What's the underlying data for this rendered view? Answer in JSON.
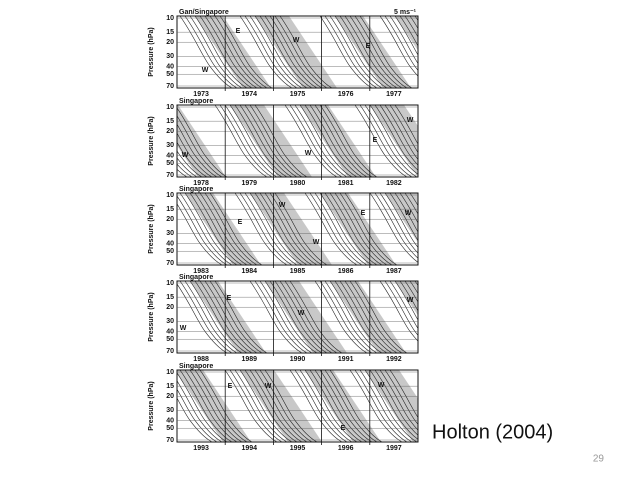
{
  "figure": {
    "scale_label": "5 ms⁻¹",
    "y_label": "Pressure (hPa)",
    "panels": [
      {
        "station": "Gan/Singapore",
        "y_ticks": [
          10,
          15,
          20,
          30,
          40,
          50,
          70
        ],
        "years": [
          "1973",
          "1974",
          "1975",
          "1976",
          "1977"
        ],
        "annotations": [
          "E",
          "W",
          "E",
          "W"
        ]
      },
      {
        "station": "Singapore",
        "y_ticks": [
          10,
          15,
          20,
          30,
          40,
          50,
          70
        ],
        "years": [
          "1978",
          "1979",
          "1980",
          "1981",
          "1982"
        ],
        "annotations": [
          "W",
          "E",
          "W",
          "W"
        ]
      },
      {
        "station": "Singapore",
        "y_ticks": [
          10,
          15,
          20,
          30,
          40,
          50,
          70
        ],
        "years": [
          "1983",
          "1984",
          "1985",
          "1986",
          "1987"
        ],
        "annotations": [
          "W",
          "E",
          "W",
          "E",
          "W"
        ]
      },
      {
        "station": "Singapore",
        "y_ticks": [
          10,
          15,
          20,
          30,
          40,
          50,
          70
        ],
        "years": [
          "1988",
          "1989",
          "1990",
          "1991",
          "1992"
        ],
        "annotations": [
          "E",
          "W",
          "W",
          "W"
        ]
      },
      {
        "station": "Singapore",
        "y_ticks": [
          10,
          15,
          20,
          30,
          40,
          50,
          70
        ],
        "years": [
          "1993",
          "1994",
          "1995",
          "1996",
          "1997"
        ],
        "annotations": [
          "E",
          "W",
          "W",
          "E"
        ]
      }
    ]
  },
  "citation": "Holton (2004)",
  "page_number": "29"
}
